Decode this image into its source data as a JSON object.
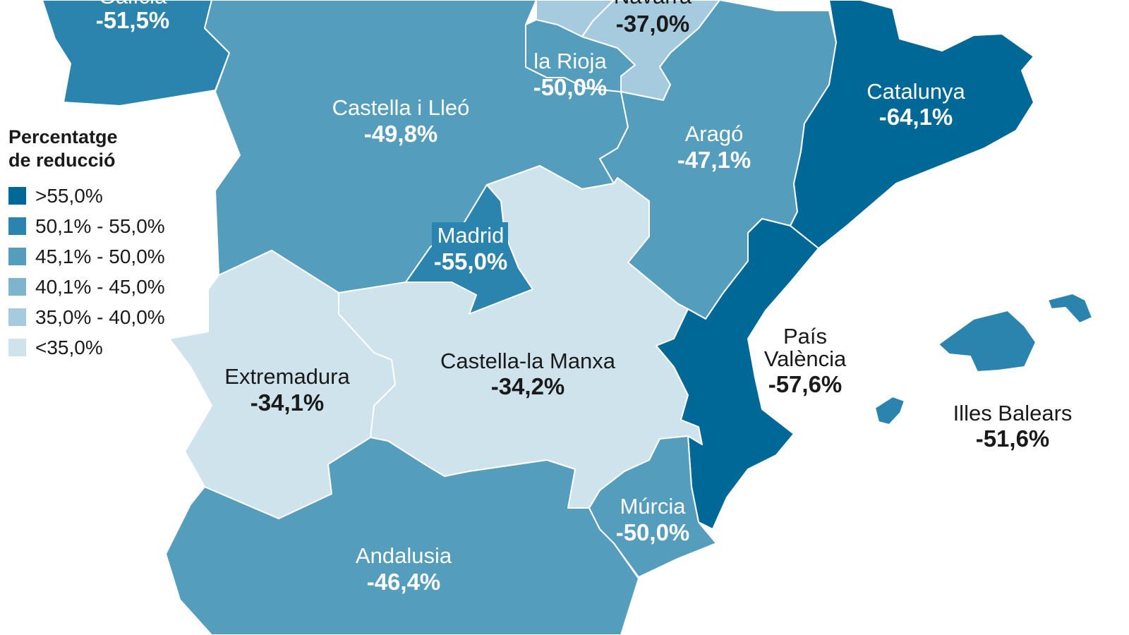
{
  "legend": {
    "title_line1": "Percentatge",
    "title_line2": "de reducció",
    "items": [
      {
        "label": ">55,0%",
        "color": "#006897"
      },
      {
        "label": "50,1% - 55,0%",
        "color": "#2a84ad"
      },
      {
        "label": "45,1% - 50,0%",
        "color": "#559dbd"
      },
      {
        "label": "40,1% - 45,0%",
        "color": "#7fb4cf"
      },
      {
        "label": "35,0% - 40,0%",
        "color": "#a7cbde"
      },
      {
        "label": "<35,0%",
        "color": "#cfe3ed"
      }
    ]
  },
  "regions": {
    "galicia": {
      "name": "Galícia",
      "value": "-51,5%",
      "color": "#2a84ad"
    },
    "navarra": {
      "name": "Navarra",
      "value": "-37,0%",
      "color": "#a7cbde"
    },
    "larioja": {
      "name": "la Rioja",
      "value": "-50,0%",
      "color": "#559dbd"
    },
    "castellalleo": {
      "name": "Castella i Lleó",
      "value": "-49,8%",
      "color": "#559dbd"
    },
    "catalunya": {
      "name": "Catalunya",
      "value": "-64,1%",
      "color": "#006897"
    },
    "arago": {
      "name": "Aragó",
      "value": "-47,1%",
      "color": "#559dbd"
    },
    "madrid": {
      "name": "Madrid",
      "value": "-55,0%",
      "color": "#2a84ad"
    },
    "paisvalencia": {
      "name_line1": "País",
      "name_line2": "València",
      "value": "-57,6%",
      "color": "#006897"
    },
    "illesbalears": {
      "name": "Illes Balears",
      "value": "-51,6%",
      "color": "#2a84ad"
    },
    "extremadura": {
      "name": "Extremadura",
      "value": "-34,1%",
      "color": "#cfe3ed"
    },
    "castellamanxa": {
      "name": "Castella-la Manxa",
      "value": "-34,2%",
      "color": "#cfe3ed"
    },
    "murcia": {
      "name": "Múrcia",
      "value": "-50,0%",
      "color": "#559dbd"
    },
    "andalusia": {
      "name": "Andalusia",
      "value": "-46,4%",
      "color": "#559dbd"
    },
    "euskadi": {
      "color": "#a7cbde"
    }
  }
}
